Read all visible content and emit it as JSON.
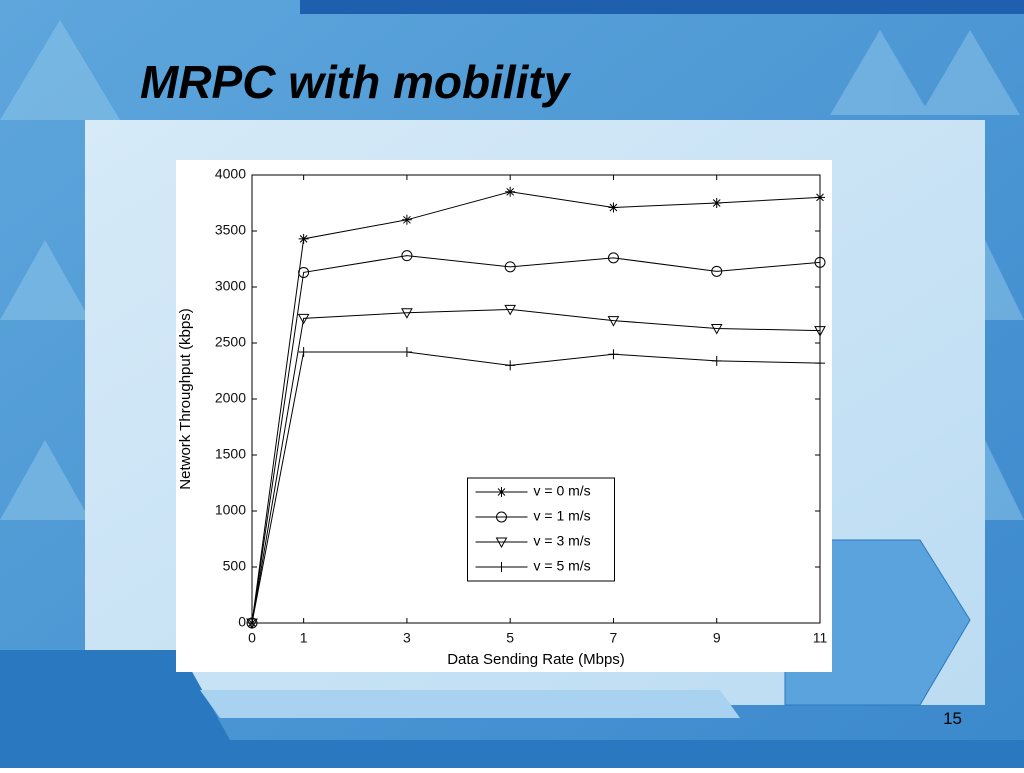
{
  "title": "MRPC with mobility",
  "page_number": 15,
  "chart_data": {
    "type": "line",
    "x": [
      0,
      1,
      3,
      5,
      7,
      9,
      11
    ],
    "series": [
      {
        "name": "v = 0 m/s",
        "color": "#000000",
        "marker": "star",
        "values": [
          0,
          3430,
          3600,
          3850,
          3710,
          3750,
          3800
        ]
      },
      {
        "name": "v = 1 m/s",
        "color": "#000000",
        "marker": "circle",
        "values": [
          0,
          3130,
          3280,
          3180,
          3260,
          3140,
          3220
        ]
      },
      {
        "name": "v = 3 m/s",
        "color": "#000000",
        "marker": "triangle-down",
        "values": [
          0,
          2720,
          2770,
          2800,
          2700,
          2630,
          2610
        ]
      },
      {
        "name": "v = 5 m/s",
        "color": "#000000",
        "marker": "plus",
        "values": [
          0,
          2420,
          2420,
          2300,
          2400,
          2340,
          2320
        ]
      }
    ],
    "x_label": "Data Sending Rate (Mbps)",
    "y_label": "Network Throughput (kbps)",
    "xlim": [
      0,
      11
    ],
    "xticks": [
      0,
      1,
      3,
      5,
      7,
      9,
      11
    ],
    "ylim": [
      0,
      4000
    ],
    "yticks": [
      0,
      500,
      1000,
      1500,
      2000,
      2500,
      3000,
      3500,
      4000
    ],
    "grid": false,
    "legend_position": "lower-center"
  }
}
